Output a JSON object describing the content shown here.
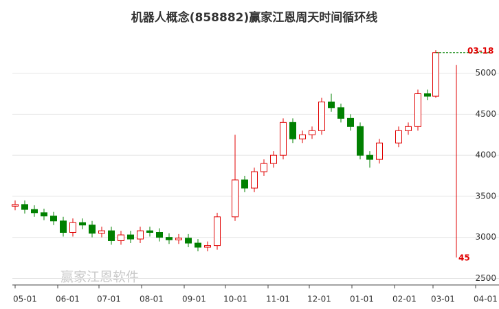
{
  "chart_data": {
    "type": "candlestick",
    "title": "机器人概念(858882)赢家江恩周天时间循环线",
    "watermark": "赢家江恩软件",
    "x": [
      "05-01",
      "05-08",
      "05-15",
      "05-22",
      "05-29",
      "06-05",
      "06-12",
      "06-19",
      "06-26",
      "07-03",
      "07-10",
      "07-17",
      "07-24",
      "07-31",
      "08-07",
      "08-14",
      "08-21",
      "08-28",
      "09-04",
      "09-11",
      "09-18",
      "09-25",
      "10-08",
      "10-15",
      "10-22",
      "10-29",
      "11-05",
      "11-12",
      "11-19",
      "11-26",
      "12-03",
      "12-10",
      "12-17",
      "12-24",
      "12-31",
      "01-07",
      "01-14",
      "01-21",
      "02-04",
      "02-11",
      "02-18",
      "02-25",
      "03-03"
    ],
    "open": [
      3380,
      3400,
      3340,
      3300,
      3260,
      3200,
      3060,
      3180,
      3150,
      3050,
      3080,
      2960,
      3030,
      2980,
      3080,
      3060,
      3000,
      2970,
      2990,
      2930,
      2880,
      2900,
      3250,
      3700,
      3600,
      3800,
      3900,
      4000,
      4400,
      4200,
      4250,
      4300,
      4650,
      4580,
      4450,
      4350,
      4000,
      3950,
      4150,
      4300,
      4350,
      4750,
      4720
    ],
    "high": [
      3450,
      3450,
      3390,
      3350,
      3310,
      3250,
      3230,
      3230,
      3200,
      3130,
      3130,
      3080,
      3080,
      3130,
      3130,
      3110,
      3050,
      3040,
      3040,
      2980,
      2950,
      3300,
      4250,
      3750,
      3850,
      3950,
      4050,
      4450,
      4450,
      4300,
      4350,
      4700,
      4750,
      4630,
      4500,
      4400,
      4050,
      4200,
      4350,
      4400,
      4800,
      4800,
      5280
    ],
    "low": [
      3330,
      3290,
      3250,
      3210,
      3150,
      3010,
      3010,
      3100,
      3000,
      3000,
      2910,
      2910,
      2930,
      2930,
      3010,
      2950,
      2920,
      2920,
      2880,
      2830,
      2830,
      2850,
      3200,
      3550,
      3550,
      3750,
      3850,
      3950,
      4150,
      4150,
      4200,
      4250,
      4530,
      4400,
      4300,
      3950,
      3850,
      3900,
      4100,
      4250,
      4300,
      4670,
      4700
    ],
    "close": [
      3400,
      3340,
      3300,
      3260,
      3200,
      3060,
      3180,
      3150,
      3050,
      3080,
      2960,
      3030,
      2980,
      3080,
      3060,
      3000,
      2970,
      2990,
      2930,
      2880,
      2900,
      3250,
      3700,
      3600,
      3800,
      3900,
      4000,
      4400,
      4200,
      4250,
      4300,
      4650,
      4580,
      4450,
      4350,
      4000,
      3950,
      4150,
      4300,
      4350,
      4750,
      4720,
      5250
    ],
    "up_color": "#e00000",
    "down_color": "#008000",
    "xticks": [
      "05-01",
      "06-01",
      "07-01",
      "08-01",
      "09-01",
      "10-01",
      "11-01",
      "12-01",
      "01-01",
      "02-01",
      "03-01",
      "04-01"
    ],
    "ylim": [
      2420,
      5390
    ],
    "yticks": [
      2500,
      3000,
      3500,
      4000,
      4500,
      5000
    ],
    "grid": true,
    "cycle_line": {
      "date": "03-18",
      "label": "45"
    }
  }
}
